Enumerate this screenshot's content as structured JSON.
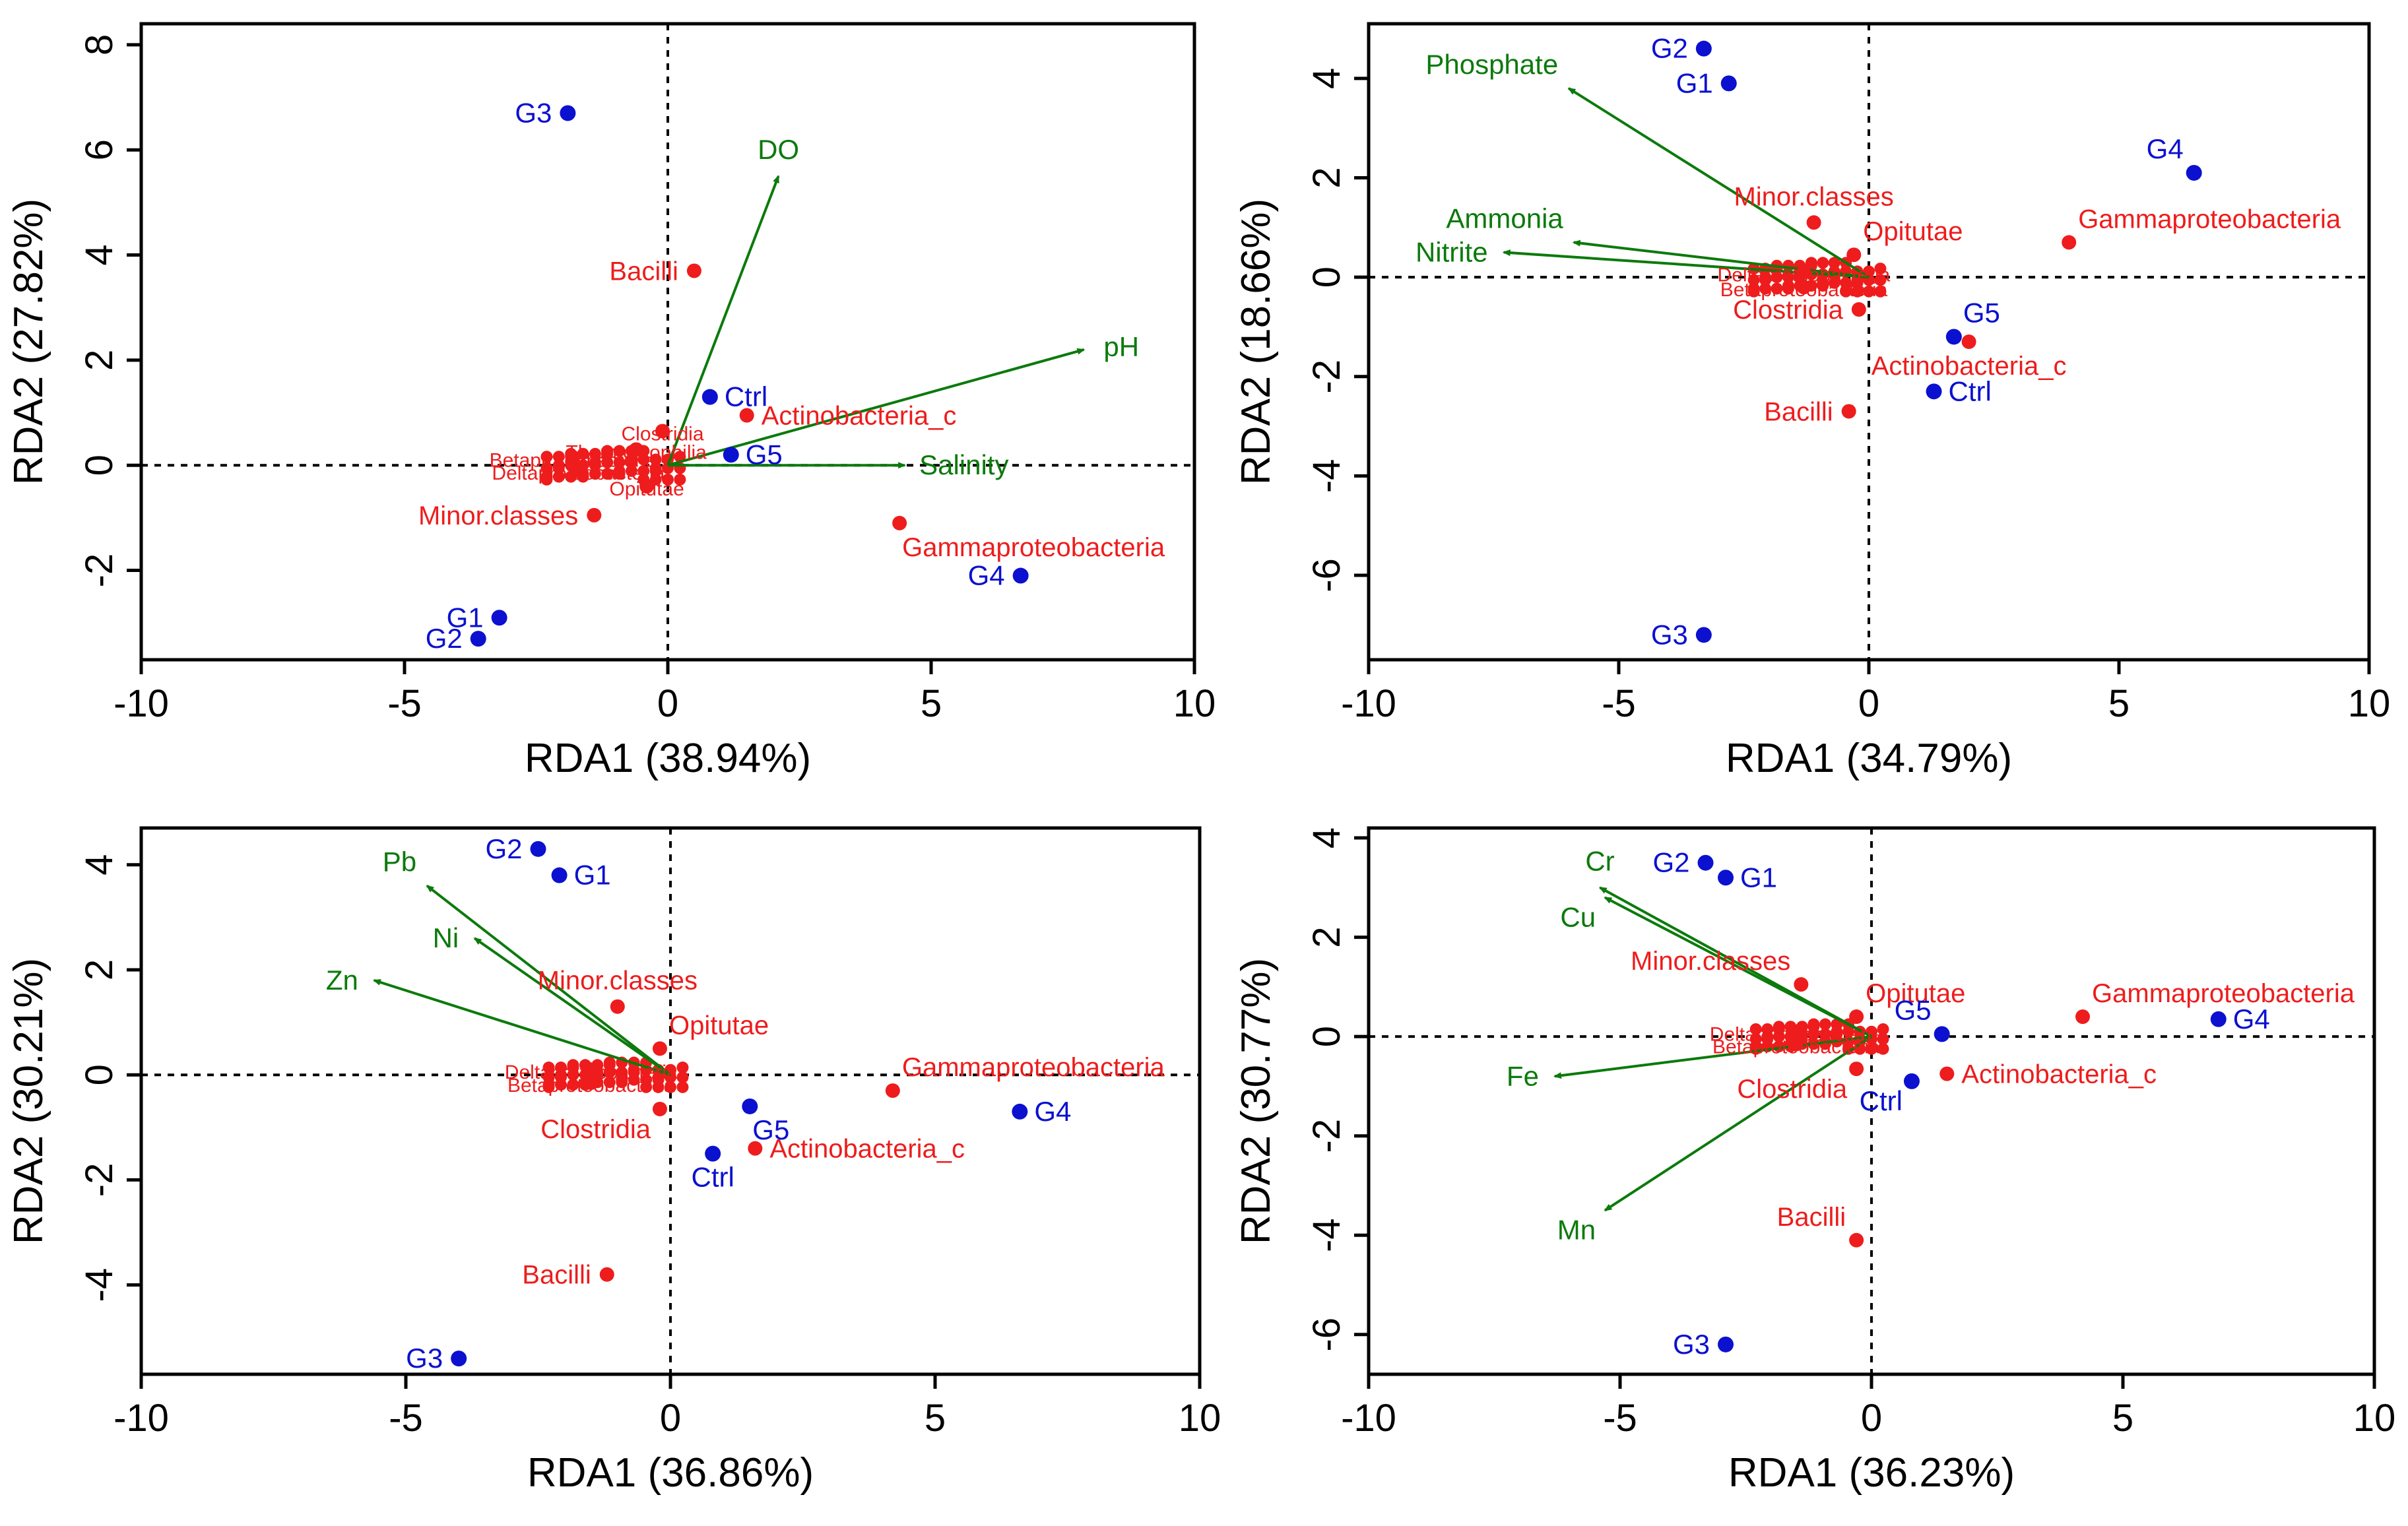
{
  "colors": {
    "site": "#0b11cf",
    "class": "#ee1c1c",
    "env": "#0c7a0c",
    "axis": "#000000"
  },
  "chart_data": [
    {
      "type": "scatter",
      "title": "",
      "xlabel": "RDA1 (38.94%)",
      "ylabel": "RDA2 (27.82%)",
      "xlim": [
        -10,
        10
      ],
      "ylim": [
        -3.7,
        8.4
      ],
      "xticks": [
        -10,
        -5,
        0,
        5,
        10
      ],
      "yticks": [
        -2,
        0,
        2,
        4,
        6,
        8
      ],
      "sites": [
        {
          "label": "G3",
          "x": -1.9,
          "y": 6.7,
          "pos": "left"
        },
        {
          "label": "Ctrl",
          "x": 0.8,
          "y": 1.3,
          "pos": "right"
        },
        {
          "label": "G5",
          "x": 1.2,
          "y": 0.2,
          "pos": "right"
        },
        {
          "label": "G4",
          "x": 6.7,
          "y": -2.1,
          "pos": "left"
        },
        {
          "label": "G1",
          "x": -3.2,
          "y": -2.9,
          "pos": "left"
        },
        {
          "label": "G2",
          "x": -3.6,
          "y": -3.3,
          "pos": "left"
        }
      ],
      "classes": [
        {
          "label": "Bacilli",
          "x": 0.5,
          "y": 3.7,
          "pos": "left"
        },
        {
          "label": "Actinobacteria_c",
          "x": 1.5,
          "y": 0.95,
          "pos": "right"
        },
        {
          "label": "Clostridia",
          "x": -0.1,
          "y": 0.65,
          "pos": "center"
        },
        {
          "label": "Minor.classes",
          "x": -1.4,
          "y": -0.95,
          "pos": "left"
        },
        {
          "label": "Gammaproteobacteria",
          "x": 4.4,
          "y": -1.1,
          "pos": "below-right"
        },
        {
          "label": "Opitutae",
          "x": -0.4,
          "y": -0.4,
          "pos": "center"
        },
        {
          "label": "Thermoleophilia",
          "x": -0.6,
          "y": 0.3,
          "pos": "center"
        },
        {
          "label": "Betaproteobacteria",
          "x": -1.8,
          "y": 0.15,
          "pos": "center"
        },
        {
          "label": "Deltaproteobacteria",
          "x": -1.7,
          "y": -0.1,
          "pos": "center"
        }
      ],
      "env": [
        {
          "label": "DO",
          "x": 2.1,
          "y": 5.5,
          "pos": "above"
        },
        {
          "label": "pH",
          "x": 7.9,
          "y": 2.2,
          "pos": "right-far"
        },
        {
          "label": "Salinity",
          "x": 4.5,
          "y": 0.0,
          "pos": "right"
        }
      ]
    },
    {
      "type": "scatter",
      "title": "",
      "xlabel": "RDA1 (34.79%)",
      "ylabel": "RDA2 (18.66%)",
      "xlim": [
        -10,
        10
      ],
      "ylim": [
        -7.7,
        5.1
      ],
      "xticks": [
        -10,
        -5,
        0,
        5,
        10
      ],
      "yticks": [
        -6,
        -4,
        -2,
        0,
        2,
        4
      ],
      "sites": [
        {
          "label": "G2",
          "x": -3.3,
          "y": 4.6,
          "pos": "left"
        },
        {
          "label": "G1",
          "x": -2.8,
          "y": 3.9,
          "pos": "left"
        },
        {
          "label": "G4",
          "x": 6.5,
          "y": 2.1,
          "pos": "above-left"
        },
        {
          "label": "G5",
          "x": 1.7,
          "y": -1.2,
          "pos": "above-right"
        },
        {
          "label": "Ctrl",
          "x": 1.3,
          "y": -2.3,
          "pos": "right"
        },
        {
          "label": "G3",
          "x": -3.3,
          "y": -7.2,
          "pos": "left"
        }
      ],
      "classes": [
        {
          "label": "Minor.classes",
          "x": -1.1,
          "y": 1.1,
          "pos": "above"
        },
        {
          "label": "Opitutae",
          "x": -0.3,
          "y": 0.45,
          "pos": "above-right"
        },
        {
          "label": "Gammaproteobacteria",
          "x": 4.0,
          "y": 0.7,
          "pos": "above-right"
        },
        {
          "label": "Clostridia",
          "x": -0.2,
          "y": -0.65,
          "pos": "left"
        },
        {
          "label": "Actinobacteria_c",
          "x": 2.0,
          "y": -1.3,
          "pos": "below"
        },
        {
          "label": "Bacilli",
          "x": -0.4,
          "y": -2.7,
          "pos": "left"
        },
        {
          "label": "Deltaproteobacteria",
          "x": -1.3,
          "y": 0.1,
          "pos": "center"
        },
        {
          "label": "Betaproteobacteria",
          "x": -1.3,
          "y": -0.2,
          "pos": "center"
        }
      ],
      "env": [
        {
          "label": "Phosphate",
          "x": -6.0,
          "y": 3.8,
          "pos": "above-left"
        },
        {
          "label": "Ammonia",
          "x": -5.9,
          "y": 0.7,
          "pos": "above-left"
        },
        {
          "label": "Nitrite",
          "x": -7.3,
          "y": 0.5,
          "pos": "left"
        }
      ]
    },
    {
      "type": "scatter",
      "title": "",
      "xlabel": "RDA1 (36.86%)",
      "ylabel": "RDA2 (30.21%)",
      "xlim": [
        -10,
        10
      ],
      "ylim": [
        -5.7,
        4.7
      ],
      "xticks": [
        -10,
        -5,
        0,
        5,
        10
      ],
      "yticks": [
        -4,
        -2,
        0,
        2,
        4
      ],
      "sites": [
        {
          "label": "G2",
          "x": -2.5,
          "y": 4.3,
          "pos": "left"
        },
        {
          "label": "G1",
          "x": -2.1,
          "y": 3.8,
          "pos": "right"
        },
        {
          "label": "G5",
          "x": 1.5,
          "y": -0.6,
          "pos": "below-right"
        },
        {
          "label": "Ctrl",
          "x": 0.8,
          "y": -1.5,
          "pos": "below"
        },
        {
          "label": "G4",
          "x": 6.6,
          "y": -0.7,
          "pos": "right"
        },
        {
          "label": "G3",
          "x": -4.0,
          "y": -5.4,
          "pos": "left"
        }
      ],
      "classes": [
        {
          "label": "Minor.classes",
          "x": -1.0,
          "y": 1.3,
          "pos": "above"
        },
        {
          "label": "Opitutae",
          "x": -0.2,
          "y": 0.5,
          "pos": "above-right"
        },
        {
          "label": "Gammaproteobacteria",
          "x": 4.2,
          "y": -0.3,
          "pos": "above-right"
        },
        {
          "label": "Clostridia",
          "x": -0.2,
          "y": -0.65,
          "pos": "below-left"
        },
        {
          "label": "Actinobacteria_c",
          "x": 1.6,
          "y": -1.4,
          "pos": "right"
        },
        {
          "label": "Bacilli",
          "x": -1.2,
          "y": -3.8,
          "pos": "left"
        },
        {
          "label": "Deltaproteobacteria",
          "x": -1.5,
          "y": 0.1,
          "pos": "center"
        },
        {
          "label": "Betaproteobacteria",
          "x": -1.5,
          "y": -0.15,
          "pos": "center"
        }
      ],
      "env": [
        {
          "label": "Pb",
          "x": -4.6,
          "y": 3.6,
          "pos": "above-left"
        },
        {
          "label": "Ni",
          "x": -3.7,
          "y": 2.6,
          "pos": "left"
        },
        {
          "label": "Zn",
          "x": -5.6,
          "y": 1.8,
          "pos": "left"
        }
      ]
    },
    {
      "type": "scatter",
      "title": "",
      "xlabel": "RDA1 (36.23%)",
      "ylabel": "RDA2 (30.77%)",
      "xlim": [
        -10,
        10
      ],
      "ylim": [
        -6.8,
        4.2
      ],
      "xticks": [
        -10,
        -5,
        0,
        5,
        10
      ],
      "yticks": [
        -6,
        -4,
        -2,
        0,
        2,
        4
      ],
      "sites": [
        {
          "label": "G2",
          "x": -3.3,
          "y": 3.5,
          "pos": "left"
        },
        {
          "label": "G1",
          "x": -2.9,
          "y": 3.2,
          "pos": "right"
        },
        {
          "label": "G5",
          "x": 1.4,
          "y": 0.05,
          "pos": "above-left"
        },
        {
          "label": "Ctrl",
          "x": 0.8,
          "y": -0.9,
          "pos": "below-left"
        },
        {
          "label": "G4",
          "x": 6.9,
          "y": 0.35,
          "pos": "right"
        },
        {
          "label": "G3",
          "x": -2.9,
          "y": -6.2,
          "pos": "left"
        }
      ],
      "classes": [
        {
          "label": "Minor.classes",
          "x": -1.4,
          "y": 1.05,
          "pos": "above-left"
        },
        {
          "label": "Opitutae",
          "x": -0.3,
          "y": 0.4,
          "pos": "above-right"
        },
        {
          "label": "Gammaproteobacteria",
          "x": 4.2,
          "y": 0.4,
          "pos": "above-right"
        },
        {
          "label": "Clostridia",
          "x": -0.3,
          "y": -0.65,
          "pos": "below-left"
        },
        {
          "label": "Actinobacteria_c",
          "x": 1.5,
          "y": -0.75,
          "pos": "right"
        },
        {
          "label": "Bacilli",
          "x": -0.3,
          "y": -4.1,
          "pos": "above-left"
        },
        {
          "label": "Deltaproteobacteria",
          "x": -1.5,
          "y": 0.1,
          "pos": "center"
        },
        {
          "label": "Betaproteobacteria",
          "x": -1.5,
          "y": -0.15,
          "pos": "center"
        }
      ],
      "env": [
        {
          "label": "Cr",
          "x": -5.4,
          "y": 3.0,
          "pos": "above"
        },
        {
          "label": "Cu",
          "x": -5.3,
          "y": 2.8,
          "pos": "below-left"
        },
        {
          "label": "Fe",
          "x": -6.3,
          "y": -0.8,
          "pos": "left"
        },
        {
          "label": "Mn",
          "x": -5.3,
          "y": -3.5,
          "pos": "below-left"
        }
      ]
    }
  ]
}
